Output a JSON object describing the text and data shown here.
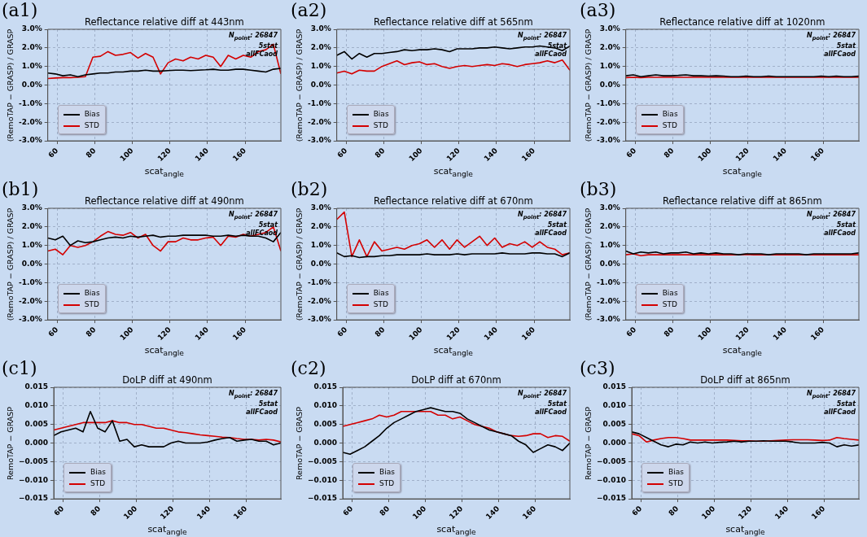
{
  "chart_data": [
    {
      "type": "line",
      "title": "Reflectance relative diff at 443nm",
      "xlabel": "scat$_{angle}$",
      "ylabel": "(RemoTAP − GRASP) / GRASP",
      "annotations": [
        "(a1)",
        "N$_{point}$: 26847",
        "5stat",
        "allFCaod"
      ],
      "x": [
        55,
        59,
        63,
        67,
        71,
        75,
        79,
        83,
        87,
        91,
        95,
        99,
        103,
        107,
        111,
        115,
        119,
        123,
        127,
        131,
        135,
        139,
        143,
        147,
        151,
        155,
        159,
        163,
        167,
        171,
        175,
        179
      ],
      "series": [
        {
          "name": "Bias",
          "color": "#000000",
          "values": [
            0.65,
            0.6,
            0.5,
            0.55,
            0.45,
            0.55,
            0.6,
            0.65,
            0.65,
            0.7,
            0.7,
            0.75,
            0.75,
            0.8,
            0.75,
            0.75,
            0.78,
            0.8,
            0.8,
            0.78,
            0.8,
            0.82,
            0.85,
            0.8,
            0.8,
            0.85,
            0.85,
            0.8,
            0.75,
            0.7,
            0.85,
            0.9
          ]
        },
        {
          "name": "STD",
          "color": "#d40000",
          "values": [
            0.35,
            0.38,
            0.4,
            0.4,
            0.42,
            0.45,
            1.5,
            1.55,
            1.8,
            1.6,
            1.65,
            1.75,
            1.45,
            1.7,
            1.5,
            0.6,
            1.2,
            1.4,
            1.3,
            1.5,
            1.4,
            1.6,
            1.5,
            1.0,
            1.6,
            1.4,
            1.6,
            1.5,
            1.8,
            1.9,
            2.2,
            0.6
          ]
        }
      ],
      "xlim": [
        55,
        179
      ],
      "ylim": [
        -3,
        3
      ],
      "xticks": [
        60,
        80,
        100,
        120,
        140,
        160
      ],
      "yticks": [
        {
          "value": -3,
          "label": "-3.0%"
        },
        {
          "value": -2,
          "label": "-2.0%"
        },
        {
          "value": -1,
          "label": "-1.0%"
        },
        {
          "value": 0,
          "label": "0.0%"
        },
        {
          "value": 1,
          "label": "1.0%"
        },
        {
          "value": 2,
          "label": "2.0%"
        },
        {
          "value": 3,
          "label": "3.0%"
        }
      ],
      "grid": true,
      "legend": "bottom left",
      "marker": "none"
    },
    {
      "type": "line",
      "title": "Reflectance relative diff at 565nm",
      "xlabel": "scat$_{angle}$",
      "ylabel": "(RemoTAP − GRASP) / GRASP",
      "annotations": [
        "(a2)",
        "N$_{point}$: 26847",
        "5stat",
        "allFCaod"
      ],
      "x": [
        55,
        59,
        63,
        67,
        71,
        75,
        79,
        83,
        87,
        91,
        95,
        99,
        103,
        107,
        111,
        115,
        119,
        123,
        127,
        131,
        135,
        139,
        143,
        147,
        151,
        155,
        159,
        163,
        167,
        171,
        175,
        179
      ],
      "series": [
        {
          "name": "Bias",
          "color": "#000000",
          "values": [
            1.6,
            1.8,
            1.4,
            1.7,
            1.5,
            1.7,
            1.7,
            1.75,
            1.8,
            1.9,
            1.85,
            1.9,
            1.9,
            1.95,
            1.9,
            1.8,
            1.95,
            1.95,
            1.95,
            2.0,
            2.0,
            2.05,
            2.0,
            1.95,
            2.0,
            2.05,
            2.05,
            2.1,
            2.05,
            2.0,
            1.85,
            2.1
          ]
        },
        {
          "name": "STD",
          "color": "#d40000",
          "values": [
            0.65,
            0.75,
            0.6,
            0.8,
            0.75,
            0.75,
            1.0,
            1.15,
            1.3,
            1.1,
            1.2,
            1.25,
            1.1,
            1.15,
            1.0,
            0.9,
            1.0,
            1.05,
            1.0,
            1.05,
            1.1,
            1.05,
            1.15,
            1.1,
            1.0,
            1.1,
            1.15,
            1.2,
            1.3,
            1.2,
            1.35,
            0.8
          ]
        }
      ],
      "xlim": [
        55,
        179
      ],
      "ylim": [
        -3,
        3
      ],
      "xticks": [
        60,
        80,
        100,
        120,
        140,
        160
      ],
      "yticks": [
        {
          "value": -3,
          "label": "-3.0%"
        },
        {
          "value": -2,
          "label": "-2.0%"
        },
        {
          "value": -1,
          "label": "-1.0%"
        },
        {
          "value": 0,
          "label": "0.0%"
        },
        {
          "value": 1,
          "label": "1.0%"
        },
        {
          "value": 2,
          "label": "2.0%"
        },
        {
          "value": 3,
          "label": "3.0%"
        }
      ],
      "grid": true,
      "legend": "bottom left",
      "marker": "none"
    },
    {
      "type": "line",
      "title": "Reflectance relative diff at 1020nm",
      "xlabel": "scat$_{angle}$",
      "ylabel": "(RemoTAP − GRASP) / GRASP",
      "annotations": [
        "(a3)",
        "N$_{point}$: 26847",
        "5stat",
        "allFCaod"
      ],
      "x": [
        55,
        59,
        63,
        67,
        71,
        75,
        79,
        83,
        87,
        91,
        95,
        99,
        103,
        107,
        111,
        115,
        119,
        123,
        127,
        131,
        135,
        139,
        143,
        147,
        151,
        155,
        159,
        163,
        167,
        171,
        175,
        179
      ],
      "series": [
        {
          "name": "Bias",
          "color": "#000000",
          "values": [
            0.5,
            0.55,
            0.45,
            0.5,
            0.55,
            0.5,
            0.5,
            0.52,
            0.55,
            0.5,
            0.5,
            0.48,
            0.5,
            0.48,
            0.45,
            0.45,
            0.48,
            0.45,
            0.45,
            0.48,
            0.45,
            0.45,
            0.45,
            0.45,
            0.45,
            0.45,
            0.48,
            0.45,
            0.48,
            0.45,
            0.45,
            0.48
          ]
        },
        {
          "name": "STD",
          "color": "#d40000",
          "values": [
            0.4,
            0.42,
            0.4,
            0.42,
            0.42,
            0.42,
            0.42,
            0.42,
            0.42,
            0.42,
            0.42,
            0.42,
            0.42,
            0.42,
            0.42,
            0.42,
            0.42,
            0.42,
            0.42,
            0.42,
            0.42,
            0.42,
            0.42,
            0.42,
            0.42,
            0.42,
            0.42,
            0.42,
            0.42,
            0.42,
            0.42,
            0.42
          ]
        }
      ],
      "xlim": [
        55,
        179
      ],
      "ylim": [
        -3,
        3
      ],
      "xticks": [
        60,
        80,
        100,
        120,
        140,
        160
      ],
      "yticks": [
        {
          "value": -3,
          "label": "-3.0%"
        },
        {
          "value": -2,
          "label": "-2.0%"
        },
        {
          "value": -1,
          "label": "-1.0%"
        },
        {
          "value": 0,
          "label": "0.0%"
        },
        {
          "value": 1,
          "label": "1.0%"
        },
        {
          "value": 2,
          "label": "2.0%"
        },
        {
          "value": 3,
          "label": "3.0%"
        }
      ],
      "grid": true,
      "legend": "bottom left",
      "marker": "none"
    },
    {
      "type": "line",
      "title": "Reflectance relative diff at 490nm",
      "xlabel": "scat$_{angle}$",
      "ylabel": "(RemoTAP − GRASP) / GRASP",
      "annotations": [
        "(b1)",
        "N$_{point}$: 26847",
        "5stat",
        "allFCaod"
      ],
      "x": [
        55,
        59,
        63,
        67,
        71,
        75,
        79,
        83,
        87,
        91,
        95,
        99,
        103,
        107,
        111,
        115,
        119,
        123,
        127,
        131,
        135,
        139,
        143,
        147,
        151,
        155,
        159,
        163,
        167,
        171,
        175,
        179
      ],
      "series": [
        {
          "name": "Bias",
          "color": "#000000",
          "values": [
            1.4,
            1.3,
            1.5,
            1.0,
            1.25,
            1.15,
            1.2,
            1.3,
            1.4,
            1.45,
            1.4,
            1.5,
            1.45,
            1.5,
            1.55,
            1.45,
            1.5,
            1.5,
            1.55,
            1.55,
            1.55,
            1.55,
            1.5,
            1.5,
            1.55,
            1.5,
            1.55,
            1.5,
            1.5,
            1.4,
            1.2,
            1.7
          ]
        },
        {
          "name": "STD",
          "color": "#d40000",
          "values": [
            0.7,
            0.8,
            0.5,
            1.0,
            0.9,
            1.0,
            1.2,
            1.5,
            1.75,
            1.6,
            1.55,
            1.7,
            1.4,
            1.6,
            1.0,
            0.7,
            1.2,
            1.2,
            1.4,
            1.3,
            1.3,
            1.4,
            1.45,
            1.0,
            1.5,
            1.45,
            1.6,
            1.5,
            1.6,
            1.7,
            2.0,
            0.7
          ]
        }
      ],
      "xlim": [
        55,
        179
      ],
      "ylim": [
        -3,
        3
      ],
      "xticks": [
        60,
        80,
        100,
        120,
        140,
        160
      ],
      "yticks": [
        {
          "value": -3,
          "label": "-3.0%"
        },
        {
          "value": -2,
          "label": "-2.0%"
        },
        {
          "value": -1,
          "label": "-1.0%"
        },
        {
          "value": 0,
          "label": "0.0%"
        },
        {
          "value": 1,
          "label": "1.0%"
        },
        {
          "value": 2,
          "label": "2.0%"
        },
        {
          "value": 3,
          "label": "3.0%"
        }
      ],
      "grid": true,
      "legend": "bottom left",
      "marker": "none"
    },
    {
      "type": "line",
      "title": "Reflectance relative diff at 670nm",
      "xlabel": "scat$_{angle}$",
      "ylabel": "(RemoTAP − GRASP) / GRASP",
      "annotations": [
        "(b2)",
        "N$_{point}$: 26847",
        "5stat",
        "allFCaod"
      ],
      "x": [
        55,
        59,
        63,
        67,
        71,
        75,
        79,
        83,
        87,
        91,
        95,
        99,
        103,
        107,
        111,
        115,
        119,
        123,
        127,
        131,
        135,
        139,
        143,
        147,
        151,
        155,
        159,
        163,
        167,
        171,
        175,
        179
      ],
      "series": [
        {
          "name": "Bias",
          "color": "#000000",
          "values": [
            0.6,
            0.4,
            0.45,
            0.35,
            0.4,
            0.4,
            0.45,
            0.45,
            0.5,
            0.5,
            0.5,
            0.5,
            0.55,
            0.5,
            0.5,
            0.5,
            0.55,
            0.5,
            0.55,
            0.55,
            0.55,
            0.55,
            0.6,
            0.55,
            0.55,
            0.55,
            0.6,
            0.6,
            0.55,
            0.55,
            0.4,
            0.6
          ]
        },
        {
          "name": "STD",
          "color": "#d40000",
          "values": [
            2.4,
            2.8,
            0.4,
            1.3,
            0.4,
            1.2,
            0.7,
            0.8,
            0.9,
            0.8,
            1.0,
            1.1,
            1.3,
            0.9,
            1.3,
            0.8,
            1.3,
            0.9,
            1.2,
            1.5,
            1.0,
            1.4,
            0.9,
            1.1,
            1.0,
            1.2,
            0.9,
            1.2,
            0.9,
            0.8,
            0.5,
            0.6
          ]
        }
      ],
      "xlim": [
        55,
        179
      ],
      "ylim": [
        -3,
        3
      ],
      "xticks": [
        60,
        80,
        100,
        120,
        140,
        160
      ],
      "yticks": [
        {
          "value": -3,
          "label": "-3.0%"
        },
        {
          "value": -2,
          "label": "-2.0%"
        },
        {
          "value": -1,
          "label": "-1.0%"
        },
        {
          "value": 0,
          "label": "0.0%"
        },
        {
          "value": 1,
          "label": "1.0%"
        },
        {
          "value": 2,
          "label": "2.0%"
        },
        {
          "value": 3,
          "label": "3.0%"
        }
      ],
      "grid": true,
      "legend": "bottom left",
      "marker": "none"
    },
    {
      "type": "line",
      "title": "Reflectance relative diff at 865nm",
      "xlabel": "scat$_{angle}$",
      "ylabel": "(RemoTAP − GRASP) / GRASP",
      "annotations": [
        "(b3)",
        "N$_{point}$: 26847",
        "5stat",
        "allFCaod"
      ],
      "x": [
        55,
        59,
        63,
        67,
        71,
        75,
        79,
        83,
        87,
        91,
        95,
        99,
        103,
        107,
        111,
        115,
        119,
        123,
        127,
        131,
        135,
        139,
        143,
        147,
        151,
        155,
        159,
        163,
        167,
        171,
        175,
        179
      ],
      "series": [
        {
          "name": "Bias",
          "color": "#000000",
          "values": [
            0.7,
            0.55,
            0.65,
            0.6,
            0.65,
            0.55,
            0.6,
            0.6,
            0.65,
            0.55,
            0.6,
            0.55,
            0.6,
            0.55,
            0.55,
            0.5,
            0.55,
            0.55,
            0.55,
            0.5,
            0.55,
            0.55,
            0.55,
            0.55,
            0.5,
            0.55,
            0.55,
            0.55,
            0.55,
            0.55,
            0.55,
            0.6
          ]
        },
        {
          "name": "STD",
          "color": "#d40000",
          "values": [
            0.5,
            0.55,
            0.45,
            0.5,
            0.5,
            0.5,
            0.5,
            0.5,
            0.5,
            0.5,
            0.5,
            0.5,
            0.5,
            0.5,
            0.5,
            0.5,
            0.52,
            0.5,
            0.5,
            0.5,
            0.5,
            0.5,
            0.5,
            0.5,
            0.5,
            0.5,
            0.5,
            0.5,
            0.5,
            0.5,
            0.5,
            0.5
          ]
        }
      ],
      "xlim": [
        55,
        179
      ],
      "ylim": [
        -3,
        3
      ],
      "xticks": [
        60,
        80,
        100,
        120,
        140,
        160
      ],
      "yticks": [
        {
          "value": -3,
          "label": "-3.0%"
        },
        {
          "value": -2,
          "label": "-2.0%"
        },
        {
          "value": -1,
          "label": "-1.0%"
        },
        {
          "value": 0,
          "label": "0.0%"
        },
        {
          "value": 1,
          "label": "1.0%"
        },
        {
          "value": 2,
          "label": "2.0%"
        },
        {
          "value": 3,
          "label": "3.0%"
        }
      ],
      "grid": true,
      "legend": "bottom left",
      "marker": "none"
    },
    {
      "type": "line",
      "title": "DoLP diff at 490nm",
      "xlabel": "scat$_{angle}$",
      "ylabel": "RemoTAP − GRASP",
      "annotations": [
        "(c1)",
        "N$_{point}$: 26847",
        "5stat",
        "allFCaod"
      ],
      "x": [
        55,
        59,
        63,
        67,
        71,
        75,
        79,
        83,
        87,
        91,
        95,
        99,
        103,
        107,
        111,
        115,
        119,
        123,
        127,
        131,
        135,
        139,
        143,
        147,
        151,
        155,
        159,
        163,
        167,
        171,
        175,
        179
      ],
      "series": [
        {
          "name": "Bias",
          "color": "#000000",
          "values": [
            0.002,
            0.003,
            0.0035,
            0.004,
            0.003,
            0.0085,
            0.004,
            0.003,
            0.006,
            0.0005,
            0.001,
            -0.001,
            -0.0005,
            -0.001,
            -0.001,
            -0.001,
            0,
            0.0005,
            0,
            0,
            0,
            0.0003,
            0.0008,
            0.0012,
            0.0015,
            0.0005,
            0.0008,
            0.001,
            0.0005,
            0.0005,
            -0.0005,
            0
          ]
        },
        {
          "name": "STD",
          "color": "#d40000",
          "values": [
            0.0035,
            0.004,
            0.0045,
            0.005,
            0.0055,
            0.0055,
            0.0055,
            0.0055,
            0.006,
            0.0055,
            0.0055,
            0.005,
            0.005,
            0.0045,
            0.004,
            0.004,
            0.0035,
            0.003,
            0.0028,
            0.0025,
            0.0022,
            0.002,
            0.0018,
            0.0016,
            0.0015,
            0.0012,
            0.001,
            0.001,
            0.0008,
            0.001,
            0.0008,
            0.0003
          ]
        }
      ],
      "xlim": [
        55,
        179
      ],
      "ylim": [
        -0.015,
        0.015
      ],
      "xticks": [
        60,
        80,
        100,
        120,
        140,
        160
      ],
      "yticks": [
        {
          "value": -0.015,
          "label": "−0.015"
        },
        {
          "value": -0.01,
          "label": "−0.010"
        },
        {
          "value": -0.005,
          "label": "−0.005"
        },
        {
          "value": 0,
          "label": "0.000"
        },
        {
          "value": 0.005,
          "label": "0.005"
        },
        {
          "value": 0.01,
          "label": "0.010"
        },
        {
          "value": 0.015,
          "label": "0.015"
        }
      ],
      "grid": true,
      "legend": "bottom left",
      "marker": "none"
    },
    {
      "type": "line",
      "title": "DoLP diff at 670nm",
      "xlabel": "scat$_{angle}$",
      "ylabel": "RemoTAP − GRASP",
      "annotations": [
        "(c2)",
        "N$_{point}$: 26847",
        "5stat",
        "allFCaod"
      ],
      "x": [
        55,
        59,
        63,
        67,
        71,
        75,
        79,
        83,
        87,
        91,
        95,
        99,
        103,
        107,
        111,
        115,
        119,
        123,
        127,
        131,
        135,
        139,
        143,
        147,
        151,
        155,
        159,
        163,
        167,
        171,
        175,
        179
      ],
      "series": [
        {
          "name": "Bias",
          "color": "#000000",
          "values": [
            -0.0025,
            -0.003,
            -0.002,
            -0.001,
            0.0005,
            0.002,
            0.004,
            0.0055,
            0.0065,
            0.0075,
            0.0085,
            0.009,
            0.0095,
            0.009,
            0.0085,
            0.0085,
            0.008,
            0.0065,
            0.0055,
            0.0045,
            0.0035,
            0.003,
            0.0025,
            0.002,
            0.0005,
            -0.0005,
            -0.0025,
            -0.0015,
            -0.0005,
            -0.001,
            -0.002,
            0
          ]
        },
        {
          "name": "STD",
          "color": "#d40000",
          "values": [
            0.0045,
            0.005,
            0.0055,
            0.006,
            0.0065,
            0.0075,
            0.007,
            0.0075,
            0.0085,
            0.0085,
            0.0085,
            0.0085,
            0.0085,
            0.0075,
            0.0075,
            0.0065,
            0.007,
            0.006,
            0.005,
            0.0045,
            0.004,
            0.003,
            0.0025,
            0.002,
            0.0018,
            0.002,
            0.0025,
            0.0025,
            0.0015,
            0.002,
            0.0018,
            0.0005
          ]
        }
      ],
      "xlim": [
        55,
        179
      ],
      "ylim": [
        -0.015,
        0.015
      ],
      "xticks": [
        60,
        80,
        100,
        120,
        140,
        160
      ],
      "yticks": [
        {
          "value": -0.015,
          "label": "−0.015"
        },
        {
          "value": -0.01,
          "label": "−0.010"
        },
        {
          "value": -0.005,
          "label": "−0.005"
        },
        {
          "value": 0,
          "label": "0.000"
        },
        {
          "value": 0.005,
          "label": "0.005"
        },
        {
          "value": 0.01,
          "label": "0.010"
        },
        {
          "value": 0.015,
          "label": "0.015"
        }
      ],
      "grid": true,
      "legend": "bottom left",
      "marker": "none"
    },
    {
      "type": "line",
      "title": "DoLP diff at 865nm",
      "xlabel": "scat$_{angle}$",
      "ylabel": "RemoTAP − GRASP",
      "annotations": [
        "(c3)",
        "N$_{point}$: 26847",
        "5stat",
        "allFCaod"
      ],
      "x": [
        55,
        59,
        63,
        67,
        71,
        75,
        79,
        83,
        87,
        91,
        95,
        99,
        103,
        107,
        111,
        115,
        119,
        123,
        127,
        131,
        135,
        139,
        143,
        147,
        151,
        155,
        159,
        163,
        167,
        171,
        175,
        179
      ],
      "series": [
        {
          "name": "Bias",
          "color": "#000000",
          "values": [
            0.003,
            0.0025,
            0.0015,
            0.0005,
            -0.0005,
            -0.001,
            -0.0003,
            -0.0005,
            0.0003,
            0,
            0.0003,
            0,
            0.0002,
            0.0003,
            0.0005,
            0.0003,
            0.0005,
            0.0005,
            0.0006,
            0.0005,
            0.0005,
            0.0005,
            0.0003,
            0,
            0,
            0,
            0.0002,
            0,
            -0.001,
            -0.0005,
            -0.0008,
            -0.0005
          ]
        },
        {
          "name": "STD",
          "color": "#d40000",
          "values": [
            0.0025,
            0.002,
            0.0003,
            0.0008,
            0.0012,
            0.0015,
            0.0015,
            0.0012,
            0.0008,
            0.0008,
            0.0008,
            0.0008,
            0.0008,
            0.0008,
            0.0007,
            0.0006,
            0.0006,
            0.0005,
            0.0005,
            0.0006,
            0.0007,
            0.0008,
            0.0009,
            0.0009,
            0.0009,
            0.0008,
            0.0007,
            0.0008,
            0.0015,
            0.0012,
            0.001,
            0.0008
          ]
        }
      ],
      "xlim": [
        55,
        179
      ],
      "ylim": [
        -0.015,
        0.015
      ],
      "xticks": [
        60,
        80,
        100,
        120,
        140,
        160
      ],
      "yticks": [
        {
          "value": -0.015,
          "label": "−0.015"
        },
        {
          "value": -0.01,
          "label": "−0.010"
        },
        {
          "value": -0.005,
          "label": "−0.005"
        },
        {
          "value": 0,
          "label": "0.000"
        },
        {
          "value": 0.005,
          "label": "0.005"
        },
        {
          "value": 0.01,
          "label": "0.010"
        },
        {
          "value": 0.015,
          "label": "0.015"
        }
      ],
      "grid": true,
      "legend": "bottom left",
      "marker": "none"
    }
  ]
}
